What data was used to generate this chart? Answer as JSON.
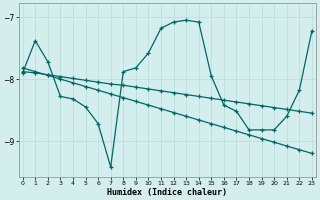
{
  "xlabel": "Humidex (Indice chaleur)",
  "bg_color": "#d4eeed",
  "line_color": "#006666",
  "grid_color": "#b8ddd8",
  "xlim": [
    -0.3,
    23.3
  ],
  "ylim": [
    -9.58,
    -6.78
  ],
  "yticks": [
    -9,
    -8,
    -7
  ],
  "xticks": [
    0,
    1,
    2,
    3,
    4,
    5,
    6,
    7,
    8,
    9,
    10,
    11,
    12,
    13,
    14,
    15,
    16,
    17,
    18,
    19,
    20,
    21,
    22,
    23
  ],
  "line1_x": [
    0,
    1,
    2,
    3,
    4,
    5,
    6,
    7,
    8,
    9,
    10,
    11,
    12,
    13,
    14,
    15,
    16,
    17,
    18,
    19,
    20,
    21,
    22,
    23
  ],
  "line1_y": [
    -7.9,
    -7.38,
    -7.72,
    -8.28,
    -8.32,
    -8.45,
    -8.72,
    -9.42,
    -7.88,
    -7.82,
    -7.58,
    -7.18,
    -7.08,
    -7.05,
    -7.08,
    -7.95,
    -8.42,
    -8.52,
    -8.82,
    -8.82,
    -8.82,
    -8.6,
    -8.18,
    -7.22
  ],
  "line2_x": [
    0,
    1,
    2,
    3,
    4,
    5,
    6,
    7,
    8,
    9,
    10,
    11,
    12,
    13,
    14,
    15,
    16,
    17,
    18,
    19,
    20,
    21,
    22,
    23
  ],
  "line2_y": [
    -7.82,
    -7.88,
    -7.94,
    -8.0,
    -8.06,
    -8.12,
    -8.18,
    -8.24,
    -8.3,
    -8.36,
    -8.42,
    -8.48,
    -8.54,
    -8.6,
    -8.66,
    -8.72,
    -8.78,
    -8.84,
    -8.9,
    -8.96,
    -9.02,
    -9.08,
    -9.14,
    -9.2
  ],
  "line3_x": [
    0,
    1,
    2,
    3,
    4,
    5,
    6,
    7,
    8,
    9,
    10,
    11,
    12,
    13,
    14,
    15,
    16,
    17,
    18,
    19,
    20,
    21,
    22,
    23
  ],
  "line3_y": [
    -7.88,
    -7.9,
    -7.93,
    -7.96,
    -7.99,
    -8.02,
    -8.05,
    -8.08,
    -8.1,
    -8.13,
    -8.16,
    -8.19,
    -8.22,
    -8.25,
    -8.28,
    -8.31,
    -8.34,
    -8.37,
    -8.4,
    -8.43,
    -8.46,
    -8.49,
    -8.52,
    -8.55
  ]
}
